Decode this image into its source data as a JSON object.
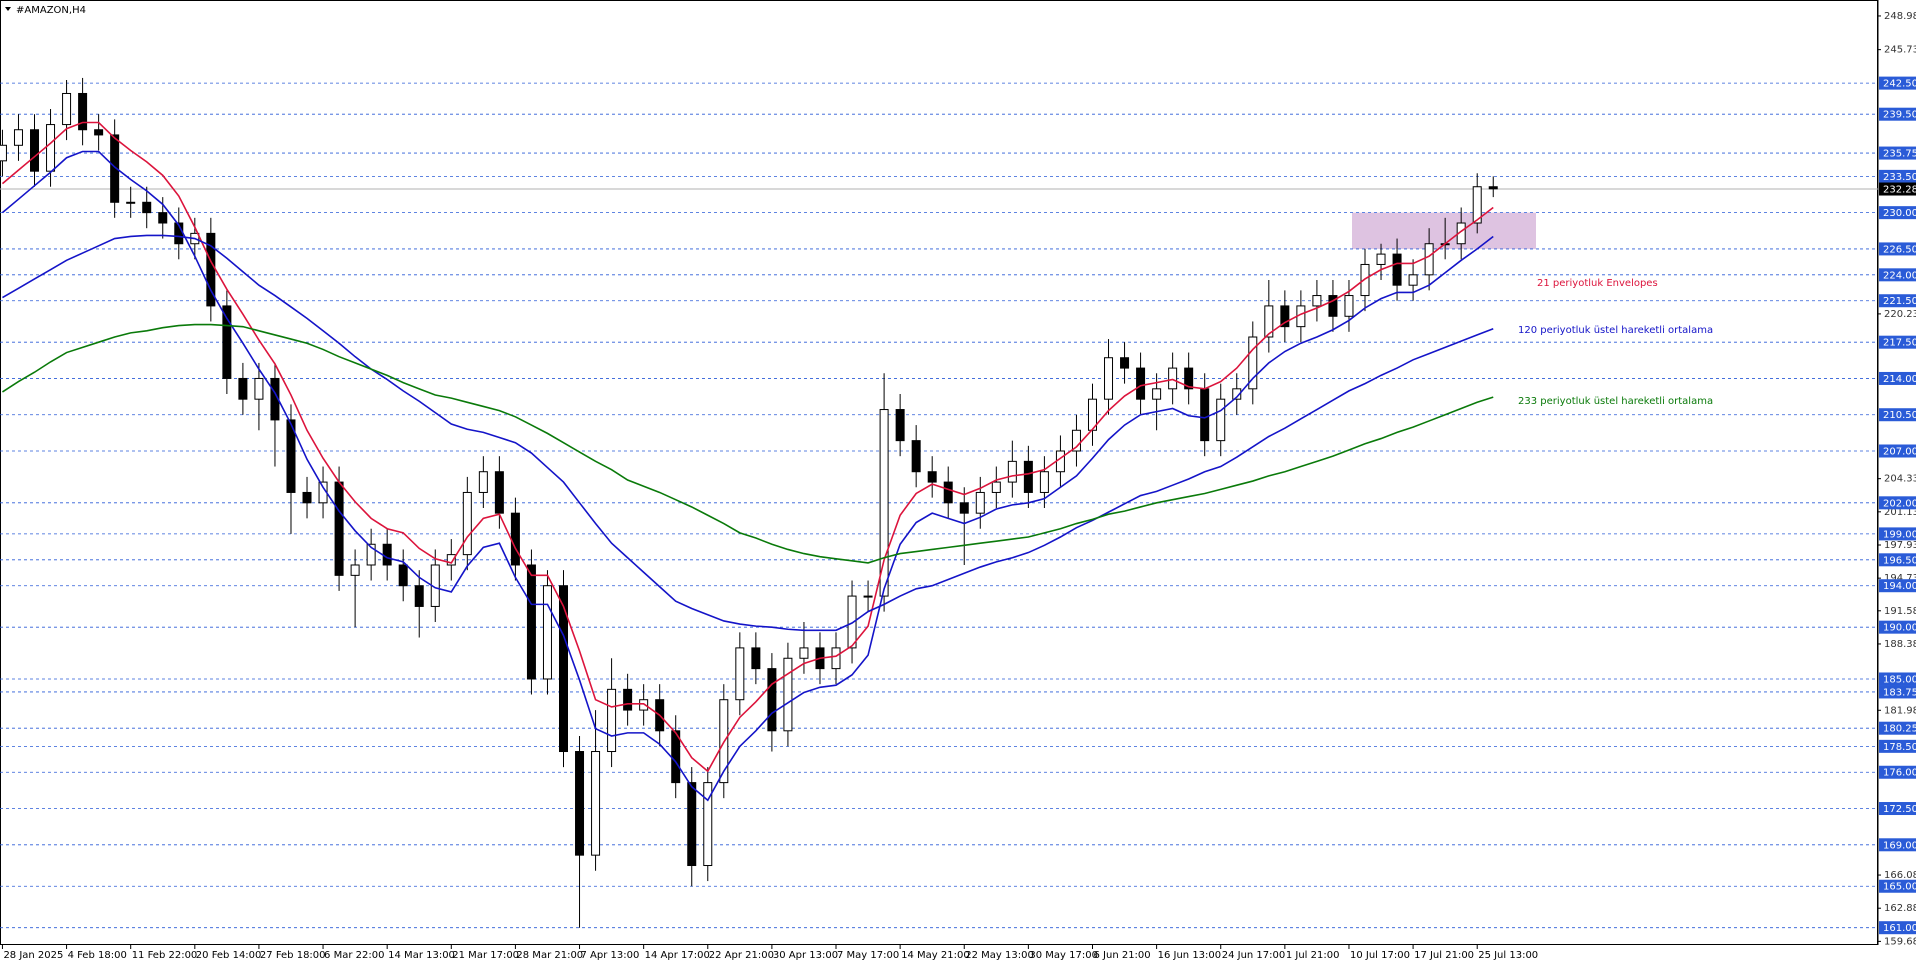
{
  "chart_data": {
    "type": "candlestick",
    "title": "#AMAZON,H4",
    "categories": [
      "28 Jan 2025",
      null,
      null,
      null,
      "4 Feb 18:00",
      null,
      null,
      null,
      "11 Feb 22:00",
      null,
      null,
      null,
      "20 Feb 14:00",
      null,
      null,
      null,
      "27 Feb 18:00",
      null,
      null,
      null,
      "6 Mar 22:00",
      null,
      null,
      null,
      "14 Mar 13:00",
      null,
      null,
      null,
      "21 Mar 17:00",
      null,
      null,
      null,
      "28 Mar 21:00",
      null,
      null,
      null,
      "7 Apr 13:00",
      null,
      null,
      null,
      "14 Apr 17:00",
      null,
      null,
      null,
      "22 Apr 21:00",
      null,
      null,
      null,
      "30 Apr 13:00",
      null,
      null,
      null,
      "7 May 17:00",
      null,
      null,
      null,
      "14 May 21:00",
      null,
      null,
      null,
      "22 May 13:00",
      null,
      null,
      null,
      "30 May 17:00",
      null,
      null,
      null,
      "6 Jun 21:00",
      null,
      null,
      null,
      "16 Jun 13:00",
      null,
      null,
      null,
      "24 Jun 17:00",
      null,
      null,
      null,
      "1 Jul 21:00",
      null,
      null,
      null,
      "10 Jul 17:00",
      null,
      null,
      null,
      "17 Jul 21:00",
      null,
      null,
      null,
      "25 Jul 13:00",
      null
    ],
    "open": [
      235,
      236.5,
      238,
      234,
      238.5,
      241.5,
      238,
      237.5,
      231,
      231,
      230,
      229,
      227,
      228,
      221,
      214,
      212,
      214,
      210,
      203,
      202,
      204,
      195,
      196,
      198,
      196,
      194,
      192,
      196,
      197,
      203,
      205,
      201,
      196,
      185,
      194,
      178,
      168,
      178,
      184,
      182,
      183,
      180,
      175,
      167,
      175,
      183,
      188,
      186,
      180,
      187,
      188,
      186,
      188,
      193,
      193,
      211,
      208,
      205,
      204,
      202,
      201,
      203,
      204,
      206,
      203,
      205,
      207,
      209,
      212,
      216,
      215,
      212,
      213,
      215,
      213,
      208,
      212,
      213,
      218,
      221,
      219,
      221,
      222,
      220,
      222,
      225,
      226,
      223,
      224,
      227,
      227,
      229,
      232.5
    ],
    "high": [
      238,
      239.5,
      239.5,
      240,
      242.8,
      243,
      239.5,
      239,
      232.5,
      232.5,
      231.5,
      230.5,
      229.5,
      229.5,
      222.5,
      215.5,
      215.5,
      215.5,
      211.5,
      204.5,
      205.5,
      205.5,
      197.5,
      199.5,
      199.5,
      197.5,
      195.5,
      197.5,
      198.5,
      204.5,
      206.5,
      206.5,
      202.5,
      197.5,
      195.5,
      195.5,
      179.5,
      182,
      187,
      185.5,
      184.5,
      184.5,
      181.5,
      176.5,
      176.5,
      184.5,
      189.5,
      189.5,
      187.5,
      188.5,
      190.5,
      189.5,
      189.5,
      194.5,
      194.5,
      214.5,
      212.5,
      209.5,
      206.5,
      205.5,
      203.5,
      204.5,
      205.5,
      208,
      207.5,
      206.5,
      208.5,
      210.5,
      213.5,
      217.8,
      217.5,
      216.5,
      214.5,
      216.5,
      216.5,
      214.5,
      213.5,
      214.5,
      219.5,
      223.5,
      222.5,
      222.5,
      223.5,
      223.5,
      223.5,
      226.5,
      227,
      227.5,
      225.5,
      228.5,
      229.5,
      230.5,
      233.8,
      233.5
    ],
    "low": [
      233.5,
      235,
      232.5,
      232.5,
      237,
      236.5,
      236,
      229.5,
      229.5,
      228.5,
      227.5,
      225.5,
      225.5,
      219.5,
      212.5,
      210.5,
      209,
      205.5,
      199,
      200.5,
      200.5,
      193.5,
      190,
      194.5,
      194.5,
      192.5,
      189,
      190.5,
      194.5,
      195.5,
      201.5,
      199.5,
      194.5,
      183.5,
      183.5,
      176.5,
      161,
      166.5,
      176.5,
      180.5,
      180.5,
      178.5,
      173.5,
      165,
      165.5,
      173.5,
      181.5,
      184.5,
      178,
      178.5,
      185.5,
      184.5,
      184.5,
      186.5,
      191.5,
      191.5,
      206.5,
      203.5,
      202.5,
      200.5,
      196,
      199.5,
      201.5,
      202.5,
      201.5,
      201.5,
      203.5,
      205.5,
      207.5,
      210.5,
      213.5,
      210.5,
      209,
      211.5,
      211.5,
      206.5,
      206.5,
      210.5,
      211.5,
      216.5,
      217.5,
      217.5,
      219.5,
      218.5,
      218.5,
      220.5,
      223.5,
      221.5,
      221.5,
      222.5,
      225.5,
      225.5,
      228,
      231.5
    ],
    "close": [
      236.5,
      238,
      234,
      238.5,
      241.5,
      238,
      237.5,
      231,
      231,
      230,
      229,
      227,
      228,
      221,
      214,
      212,
      214,
      210,
      203,
      202,
      204,
      195,
      196,
      198,
      196,
      194,
      192,
      196,
      197,
      203,
      205,
      201,
      196,
      185,
      194,
      178,
      168,
      178,
      184,
      182,
      183,
      180,
      175,
      167,
      175,
      183,
      188,
      186,
      180,
      187,
      188,
      186,
      188,
      193,
      193,
      211,
      208,
      205,
      204,
      202,
      201,
      203,
      204,
      206,
      203,
      205,
      207,
      209,
      212,
      216,
      215,
      212,
      213,
      215,
      213,
      208,
      212,
      213,
      218,
      221,
      219,
      221,
      222,
      220,
      222,
      225,
      226,
      223,
      224,
      227,
      227,
      229,
      232.5,
      232.3
    ],
    "up_color": "#ffffff",
    "down_color": "#000000",
    "series": [
      {
        "name": "21 periyotluk Envelopes",
        "color": "#dc143c",
        "values": [
          232.8,
          234.1,
          235.4,
          236.7,
          238.1,
          238.7,
          238.7,
          237.2,
          236,
          234.9,
          233.6,
          231.6,
          228.6,
          225.3,
          222.6,
          220.2,
          217.7,
          215.4,
          212.4,
          209,
          206.3,
          204,
          202.1,
          200.5,
          199.5,
          199.1,
          197.6,
          196.6,
          196.2,
          198.7,
          200.5,
          200.9,
          197.6,
          195,
          195,
          192,
          187.7,
          183,
          182.3,
          182.6,
          182.6,
          181.5,
          179.8,
          177.4,
          176.1,
          178.9,
          181.3,
          182.8,
          184.5,
          185.5,
          186.5,
          187,
          187.2,
          188.2,
          190.1,
          196.5,
          200.8,
          202.9,
          203.8,
          203.3,
          202.8,
          203.4,
          204.2,
          204.6,
          204.8,
          205.2,
          206.3,
          207.4,
          209.1,
          210.9,
          212.3,
          213.3,
          213.6,
          213.9,
          213.2,
          213,
          213.7,
          215,
          216.8,
          218.3,
          219.4,
          220.2,
          220.8,
          221.5,
          222.4,
          223.6,
          224.5,
          225.1,
          225.1,
          225.8,
          227,
          228.2,
          229.3,
          230.5
        ]
      },
      {
        "color": "#1414c8",
        "values": [
          230,
          231.3,
          232.6,
          233.9,
          235.3,
          235.9,
          235.9,
          234.4,
          233.2,
          232.1,
          230.8,
          228.8,
          225.8,
          222.5,
          219.8,
          217.4,
          214.9,
          212.6,
          209.6,
          206.2,
          203.5,
          201.2,
          199.3,
          197.7,
          196.7,
          196.3,
          194.8,
          193.8,
          193.4,
          195.9,
          197.7,
          198.1,
          194.8,
          192.2,
          192.2,
          189.2,
          184.9,
          180.2,
          179.5,
          179.8,
          179.8,
          178.7,
          177,
          174.6,
          173.3,
          176.1,
          178.5,
          180,
          181.7,
          182.7,
          183.7,
          184.2,
          184.4,
          185.4,
          187.3,
          193.7,
          198,
          200.1,
          201,
          200.5,
          200,
          200.6,
          201.4,
          201.8,
          202,
          202.4,
          203.5,
          204.6,
          206.3,
          208.1,
          209.5,
          210.5,
          210.8,
          211.1,
          210.4,
          210.2,
          210.9,
          212.2,
          214,
          215.5,
          216.6,
          217.4,
          218,
          218.7,
          219.6,
          220.8,
          221.7,
          222.3,
          222.3,
          223,
          224.2,
          225.4,
          226.5,
          227.7
        ]
      },
      {
        "name": "120 periyotluk üstel hareketli ortalama",
        "color": "#1414c8",
        "values": [
          221.8,
          222.7,
          223.6,
          224.5,
          225.4,
          226.1,
          226.8,
          227.5,
          227.7,
          227.8,
          227.8,
          227.7,
          227.5,
          226.8,
          225.6,
          224.3,
          223,
          222,
          220.9,
          219.8,
          218.6,
          217.4,
          216.1,
          214.9,
          213.9,
          212.8,
          211.8,
          210.7,
          209.6,
          209.1,
          208.8,
          208.3,
          207.8,
          206.8,
          205.4,
          204,
          202,
          200,
          198.1,
          196.7,
          195.3,
          193.9,
          192.5,
          191.8,
          191.2,
          190.6,
          190.3,
          190.1,
          190,
          189.8,
          189.7,
          189.7,
          189.7,
          190.4,
          191.5,
          192.2,
          193,
          193.7,
          194,
          194.6,
          195.2,
          195.8,
          196.3,
          196.7,
          197.2,
          197.9,
          198.7,
          199.6,
          200.3,
          201.1,
          201.9,
          202.7,
          203.1,
          203.7,
          204.3,
          205,
          205.5,
          206.4,
          207.4,
          208.4,
          209.2,
          210.1,
          211,
          211.9,
          212.8,
          213.5,
          214.3,
          215,
          215.8,
          216.4,
          217,
          217.6,
          218.2,
          218.8
        ]
      },
      {
        "name": "233 periyotluk üstel hareketli ortalama",
        "color": "#0a7a0a",
        "values": [
          212.7,
          213.7,
          214.6,
          215.6,
          216.5,
          217,
          217.5,
          218,
          218.4,
          218.6,
          218.9,
          219.1,
          219.2,
          219.2,
          219.1,
          219,
          218.6,
          218.2,
          217.8,
          217.4,
          216.8,
          216.1,
          215.5,
          214.9,
          214.3,
          213.6,
          213,
          212.4,
          212.1,
          211.7,
          211.3,
          210.9,
          210.3,
          209.5,
          208.7,
          207.8,
          206.9,
          206,
          205.2,
          204.2,
          203.6,
          203,
          202.3,
          201.6,
          200.8,
          200,
          199.1,
          198.6,
          198,
          197.5,
          197.1,
          196.8,
          196.6,
          196.4,
          196.2,
          196.7,
          197.1,
          197.3,
          197.5,
          197.7,
          197.9,
          198.1,
          198.3,
          198.5,
          198.7,
          199.1,
          199.5,
          200,
          200.4,
          200.9,
          201.2,
          201.6,
          202,
          202.3,
          202.6,
          202.9,
          203.3,
          203.7,
          204.1,
          204.6,
          205,
          205.5,
          206,
          206.5,
          207.1,
          207.7,
          208.2,
          208.8,
          209.3,
          209.9,
          210.5,
          211.1,
          211.7,
          212.2
        ]
      }
    ],
    "ylim": [
      159.33,
      250.52
    ],
    "yticks": [
      248.98,
      245.73,
      220.23,
      204.33,
      201.13,
      197.93,
      194.73,
      191.58,
      188.38,
      181.98,
      166.08,
      162.88,
      159.68
    ],
    "levels": [
      {
        "value": 242.5,
        "label": "242.50"
      },
      {
        "value": 239.5,
        "label": "239.50"
      },
      {
        "value": 235.75,
        "label": "235.75"
      },
      {
        "value": 233.5,
        "label": "233.50"
      },
      {
        "value": 230,
        "label": "230.00"
      },
      {
        "value": 226.5,
        "label": "226.50"
      },
      {
        "value": 224,
        "label": "224.00"
      },
      {
        "value": 221.5,
        "label": "221.50"
      },
      {
        "value": 217.5,
        "label": "217.50"
      },
      {
        "value": 214,
        "label": "214.00"
      },
      {
        "value": 210.5,
        "label": "210.50"
      },
      {
        "value": 207,
        "label": "207.00"
      },
      {
        "value": 202,
        "label": "202.00"
      },
      {
        "value": 199,
        "label": "199.00"
      },
      {
        "value": 196.5,
        "label": "196.50"
      },
      {
        "value": 194,
        "label": "194.00"
      },
      {
        "value": 190,
        "label": "190.00"
      },
      {
        "value": 185,
        "label": "185.00"
      },
      {
        "value": 183.75,
        "label": "183.75"
      },
      {
        "value": 180.25,
        "label": "180.25"
      },
      {
        "value": 178.5,
        "label": "178.50"
      },
      {
        "value": 176,
        "label": "176.00"
      },
      {
        "value": 172.5,
        "label": "172.50"
      },
      {
        "value": 169,
        "label": "169.00"
      },
      {
        "value": 165,
        "label": "165.00"
      },
      {
        "value": 161,
        "label": "161.00"
      }
    ],
    "level_color": "#2a5bd7",
    "last_price": 232.28,
    "zone": [
      226.5,
      230
    ],
    "zone_color": "#d8b8dc"
  }
}
